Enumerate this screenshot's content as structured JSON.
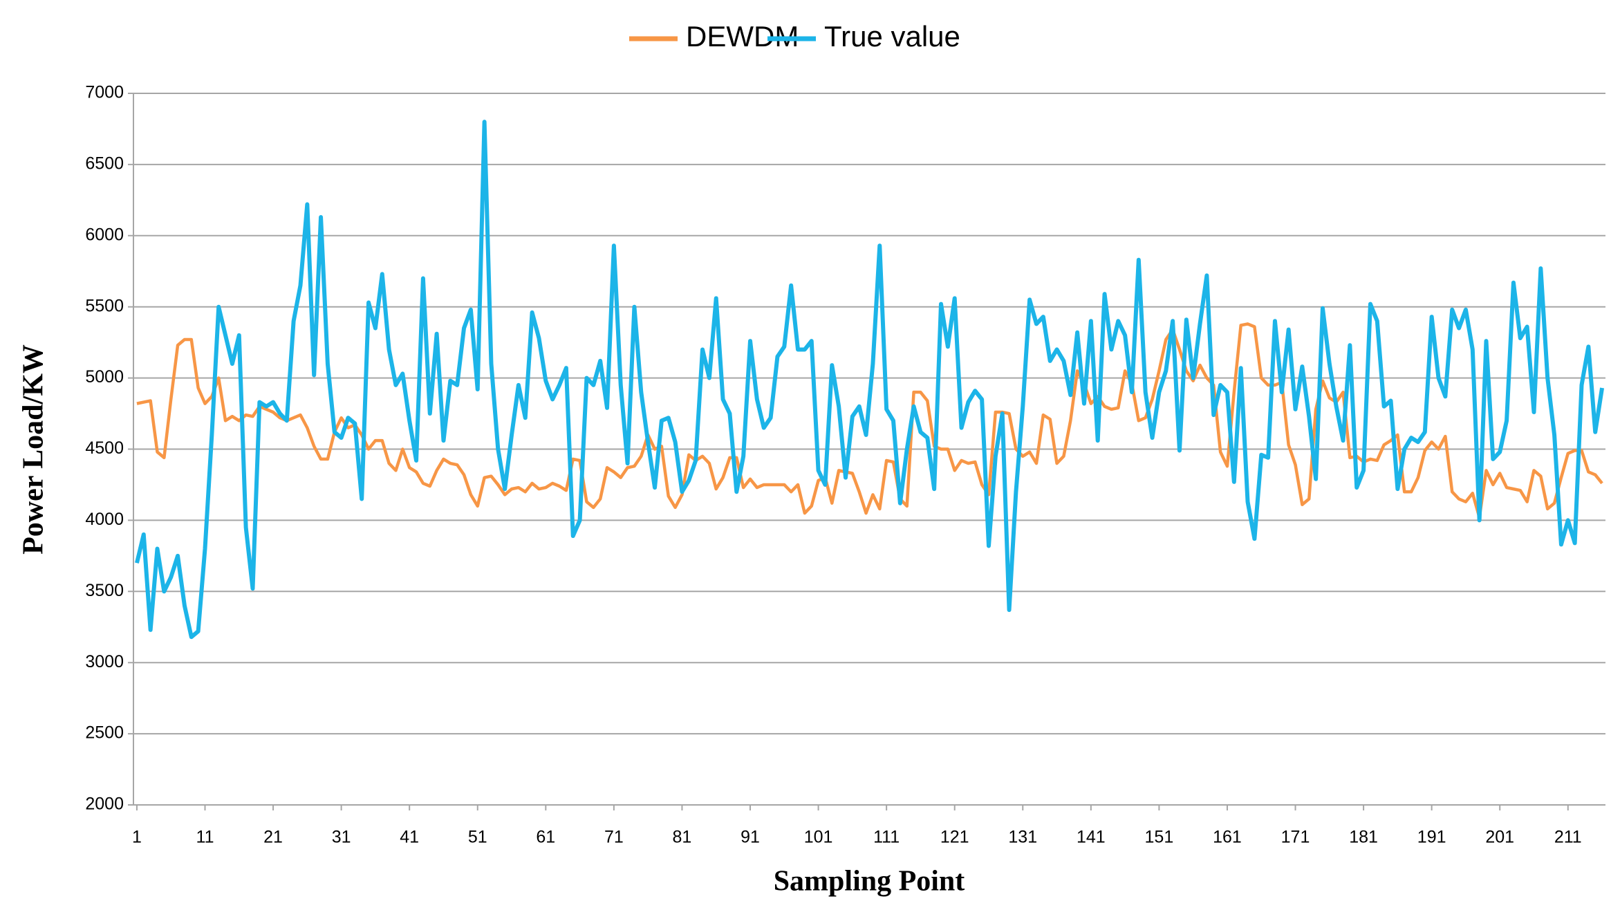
{
  "chart_data": {
    "type": "line",
    "xlabel": "Sampling Point",
    "ylabel": "Power Load/KW",
    "categories": [
      1,
      null,
      null,
      null,
      null,
      null,
      null,
      null,
      null,
      null,
      11,
      null,
      null,
      null,
      null,
      null,
      null,
      null,
      null,
      null,
      21,
      null,
      null,
      null,
      null,
      null,
      null,
      null,
      null,
      null,
      31,
      null,
      null,
      null,
      null,
      null,
      null,
      null,
      null,
      null,
      41,
      null,
      null,
      null,
      null,
      null,
      null,
      null,
      null,
      null,
      51,
      null,
      null,
      null,
      null,
      null,
      null,
      null,
      null,
      null,
      61,
      null,
      null,
      null,
      null,
      null,
      null,
      null,
      null,
      null,
      71,
      null,
      null,
      null,
      null,
      null,
      null,
      null,
      null,
      null,
      81,
      null,
      null,
      null,
      null,
      null,
      null,
      null,
      null,
      null,
      91,
      null,
      null,
      null,
      null,
      null,
      null,
      null,
      null,
      null,
      101,
      null,
      null,
      null,
      null,
      null,
      null,
      null,
      null,
      null,
      111,
      null,
      null,
      null,
      null,
      null,
      null,
      null,
      null,
      null,
      121,
      null,
      null,
      null,
      null,
      null,
      null,
      null,
      null,
      null,
      131,
      null,
      null,
      null,
      null,
      null,
      null,
      null,
      null,
      null,
      141,
      null,
      null,
      null,
      null,
      null,
      null,
      null,
      null,
      null,
      151,
      null,
      null,
      null,
      null,
      null,
      null,
      null,
      null,
      null,
      161,
      null,
      null,
      null,
      null,
      null,
      null,
      null,
      null,
      null,
      171,
      null,
      null,
      null,
      null,
      null,
      null,
      null,
      null,
      null,
      181,
      null,
      null,
      null,
      null,
      null,
      null,
      null,
      null,
      null,
      191,
      null,
      null,
      null,
      null,
      null,
      null,
      null,
      null,
      null,
      201,
      null,
      null,
      null,
      null,
      null,
      null,
      null,
      null,
      null,
      211,
      null,
      null,
      null,
      null,
      null
    ],
    "series": [
      {
        "name": "DEWDM",
        "color": "#f79646",
        "values": [
          4820,
          4830,
          4840,
          4480,
          4440,
          4850,
          5230,
          5270,
          5270,
          4930,
          4820,
          4870,
          5000,
          4700,
          4730,
          4700,
          4740,
          4730,
          4800,
          4780,
          4760,
          4720,
          4700,
          4720,
          4740,
          4650,
          4520,
          4430,
          4430,
          4620,
          4720,
          4650,
          4670,
          4600,
          4500,
          4560,
          4560,
          4400,
          4350,
          4500,
          4370,
          4340,
          4260,
          4240,
          4350,
          4430,
          4400,
          4390,
          4320,
          4180,
          4100,
          4300,
          4310,
          4250,
          4180,
          4220,
          4230,
          4200,
          4260,
          4220,
          4230,
          4260,
          4240,
          4210,
          4430,
          4420,
          4130,
          4090,
          4150,
          4370,
          4340,
          4300,
          4370,
          4380,
          4450,
          4600,
          4500,
          4520,
          4170,
          4090,
          4180,
          4460,
          4420,
          4450,
          4400,
          4220,
          4300,
          4440,
          4440,
          4230,
          4290,
          4230,
          4250,
          4250,
          4250,
          4250,
          4200,
          4250,
          4050,
          4100,
          4280,
          4300,
          4120,
          4350,
          4340,
          4330,
          4200,
          4050,
          4180,
          4080,
          4420,
          4410,
          4150,
          4100,
          4900,
          4900,
          4840,
          4520,
          4500,
          4500,
          4350,
          4420,
          4400,
          4410,
          4250,
          4180,
          4760,
          4760,
          4750,
          4500,
          4450,
          4480,
          4400,
          4740,
          4710,
          4400,
          4450,
          4700,
          5050,
          4960,
          4820,
          4870,
          4800,
          4780,
          4790,
          5050,
          4960,
          4700,
          4720,
          4850,
          5050,
          5270,
          5340,
          5200,
          5050,
          4980,
          5090,
          5000,
          4950,
          4480,
          4380,
          4900,
          5370,
          5380,
          5360,
          5000,
          4950,
          4950,
          4970,
          4530,
          4390,
          4110,
          4150,
          4780,
          4980,
          4860,
          4830,
          4900,
          4440,
          4450,
          4410,
          4430,
          4420,
          4530,
          4560,
          4600,
          4200,
          4200,
          4300,
          4490,
          4550,
          4500,
          4590,
          4200,
          4150,
          4130,
          4190,
          4020,
          4350,
          4250,
          4330,
          4230,
          4220,
          4210,
          4130,
          4350,
          4310,
          4080,
          4120,
          4300,
          4470,
          4490,
          4490,
          4340,
          4320,
          4260
        ]
      },
      {
        "name": "True value",
        "color": "#1cb4e8",
        "values": [
          3700,
          3900,
          3230,
          3800,
          3500,
          3600,
          3750,
          3400,
          3180,
          3220,
          3800,
          4600,
          5500,
          5300,
          5100,
          5300,
          3950,
          3520,
          4830,
          4800,
          4830,
          4750,
          4700,
          5400,
          5650,
          6220,
          5020,
          6130,
          5100,
          4620,
          4580,
          4720,
          4680,
          4150,
          5530,
          5350,
          5730,
          5200,
          4950,
          5030,
          4700,
          4420,
          5700,
          4750,
          5310,
          4560,
          4980,
          4950,
          5350,
          5480,
          4920,
          6800,
          5100,
          4500,
          4220,
          4600,
          4950,
          4720,
          5460,
          5280,
          4980,
          4850,
          4950,
          5070,
          3890,
          4000,
          5000,
          4950,
          5120,
          4790,
          5930,
          4950,
          4400,
          5500,
          4900,
          4550,
          4230,
          4700,
          4720,
          4550,
          4200,
          4280,
          4420,
          5200,
          5000,
          5560,
          4850,
          4750,
          4200,
          4450,
          5260,
          4850,
          4650,
          4720,
          5150,
          5220,
          5650,
          5200,
          5200,
          5260,
          4350,
          4250,
          5090,
          4800,
          4300,
          4730,
          4800,
          4600,
          5100,
          5930,
          4780,
          4700,
          4120,
          4500,
          4800,
          4620,
          4580,
          4220,
          5520,
          5220,
          5560,
          4650,
          4830,
          4910,
          4850,
          3820,
          4450,
          4750,
          3370,
          4200,
          4800,
          5550,
          5380,
          5430,
          5120,
          5200,
          5120,
          4880,
          5320,
          4820,
          5400,
          4560,
          5590,
          5200,
          5400,
          5300,
          4900,
          5830,
          4900,
          4580,
          4900,
          5050,
          5400,
          4490,
          5410,
          5000,
          5380,
          5720,
          4740,
          4950,
          4900,
          4270,
          5070,
          4130,
          3870,
          4460,
          4440,
          5400,
          4900,
          5340,
          4780,
          5080,
          4730,
          4290,
          5490,
          5100,
          4800,
          4560,
          5230,
          4230,
          4350,
          5520,
          5400,
          4800,
          4840,
          4220,
          4500,
          4580,
          4550,
          4620,
          5430,
          5000,
          4870,
          5480,
          5350,
          5480,
          5200,
          4000,
          5260,
          4430,
          4480,
          4700,
          5670,
          5280,
          5360,
          4760,
          5770,
          5000,
          4600,
          3830,
          4000,
          3840,
          4950,
          5220,
          4620,
          4930
        ]
      }
    ],
    "ylim": [
      2000,
      7000
    ],
    "yticks": [
      2000,
      2500,
      3000,
      3500,
      4000,
      4500,
      5000,
      5500,
      6000,
      6500,
      7000
    ],
    "grid": true,
    "legend": "top"
  }
}
